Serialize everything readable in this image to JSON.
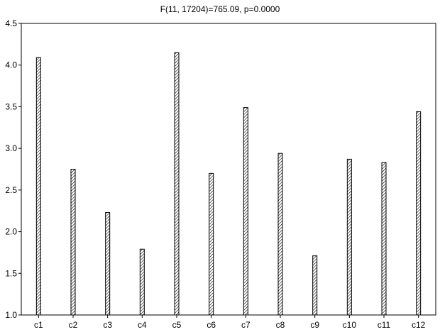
{
  "chart_data": {
    "type": "bar",
    "title": "F(11, 17204)=765.09, p=0.0000",
    "xlabel": "",
    "ylabel": "",
    "categories": [
      "c1",
      "c2",
      "c3",
      "c4",
      "c5",
      "c6",
      "c7",
      "c8",
      "c9",
      "c10",
      "c11",
      "c12"
    ],
    "values": [
      4.09,
      2.75,
      2.23,
      1.79,
      4.15,
      2.7,
      3.49,
      2.94,
      1.71,
      2.87,
      2.83,
      3.44
    ],
    "ylim": [
      1.0,
      4.5
    ],
    "yticks": [
      "1.0",
      "1.5",
      "2.0",
      "2.5",
      "3.0",
      "3.5",
      "4.0",
      "4.5"
    ],
    "grid": false,
    "legend": "none",
    "bar_fill": "hatched",
    "bar_color": "#000000"
  }
}
